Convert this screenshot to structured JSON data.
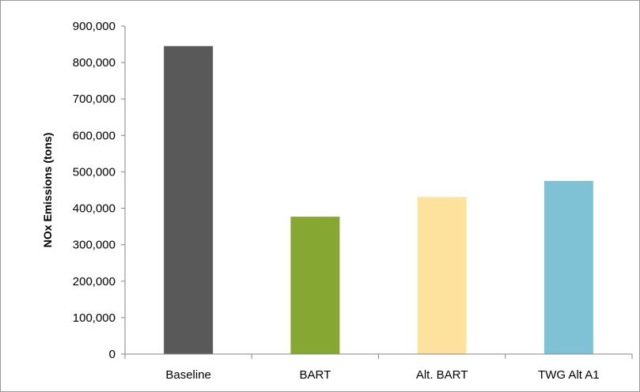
{
  "chart_data": {
    "type": "bar",
    "categories": [
      "Baseline",
      "BART",
      "Alt. BART",
      "TWG Alt A1"
    ],
    "values": [
      845000,
      377000,
      431000,
      475000
    ],
    "colors": [
      "#595959",
      "#86a832",
      "#fde29e",
      "#7fc2d6"
    ],
    "title": "",
    "xlabel": "",
    "ylabel": "NOx Emissions (tons)",
    "ylim": [
      0,
      900000
    ],
    "yticks": [
      0,
      100000,
      200000,
      300000,
      400000,
      500000,
      600000,
      700000,
      800000,
      900000
    ],
    "ytick_labels": [
      "0",
      "100,000",
      "200,000",
      "300,000",
      "400,000",
      "500,000",
      "600,000",
      "700,000",
      "800,000",
      "900,000"
    ],
    "grid": false,
    "legend": "none"
  }
}
